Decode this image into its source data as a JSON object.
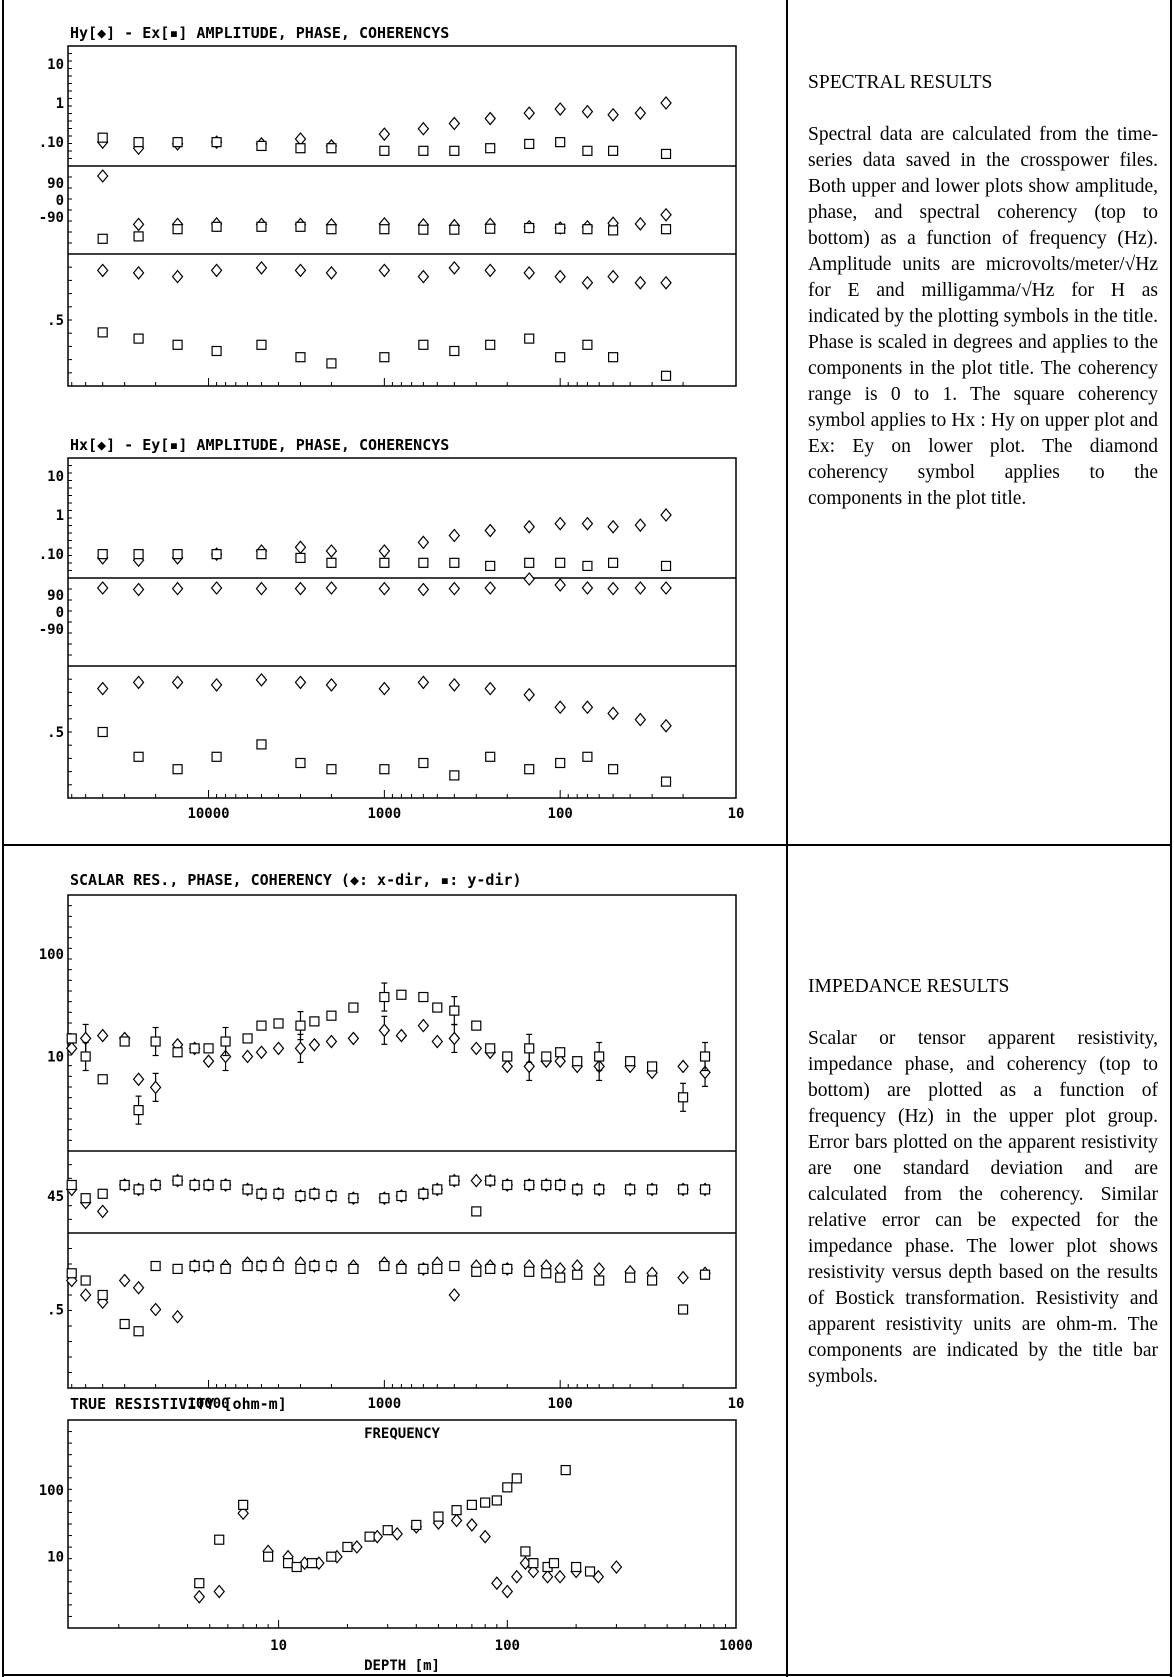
{
  "header_fragment": "(",
  "header_fragment_right": ")",
  "spectral": {
    "heading": "SPECTRAL RESULTS",
    "body": "Spectral data are calculated from the time-series data saved in the crosspower files. Both upper and lower plots show amplitude, phase, and spectral coherency (top to bottom) as a function of frequency (Hz). Amplitude units are microvolts/meter/√Hz for E and milligamma/√Hz for H as indicated by the plotting symbols in the title. Phase is scaled in degrees and applies to the components in the plot title. The coherency range is 0 to 1. The square coherency symbol applies to Hx : Hy on upper plot and Ex: Ey on lower plot. The diamond coherency symbol applies to the components in the plot title."
  },
  "impedance": {
    "heading": "IMPEDANCE RESULTS",
    "body": "Scalar or tensor apparent resistivity, impedance phase, and coherency (top to bottom) are plotted as a function of frequency (Hz) in the upper plot group. Error bars plotted on the apparent resistivity are one standard deviation and are calculated from the coherency. Similar relative error can be expected for the impedance phase. The lower plot shows resistivity versus depth based on the results of Bostick transformation. Resistivity and apparent resistivity units are ohm-m. The components are indicated by the title bar symbols."
  },
  "chart_data": [
    {
      "type": "scatter",
      "title": "Hy[◆] - Ex[▪] AMPLITUDE, PHASE, COHERENCYS",
      "xlabel": "",
      "x_scale": "log (decreasing)",
      "x_ticks": [],
      "subpanels": [
        {
          "name": "amplitude",
          "yticks": [
            "10",
            "1",
            ".10"
          ],
          "y_scale": "log"
        },
        {
          "name": "phase",
          "yticks": [
            "90",
            "0",
            "-90"
          ]
        },
        {
          "name": "coherency",
          "yticks": [
            ".5"
          ]
        }
      ],
      "series": [
        {
          "symbol": "diamond",
          "frequency": [
            40000,
            25000,
            15000,
            9000,
            5000,
            3000,
            2000,
            1000,
            600,
            400,
            250,
            150,
            100,
            70,
            50,
            35,
            25
          ],
          "amplitude": [
            0.1,
            0.07,
            0.09,
            0.1,
            0.09,
            0.12,
            0.08,
            0.16,
            0.22,
            0.3,
            0.4,
            0.55,
            0.7,
            0.6,
            0.5,
            0.55,
            1.0
          ],
          "phase": [
            90,
            -90,
            -90,
            -88,
            -90,
            -90,
            -92,
            -88,
            -92,
            -95,
            -90,
            -100,
            -105,
            -100,
            -85,
            -88,
            -50
          ],
          "coherency": [
            0.9,
            0.88,
            0.85,
            0.9,
            0.92,
            0.9,
            0.88,
            0.9,
            0.85,
            0.92,
            0.9,
            0.88,
            0.85,
            0.8,
            0.85,
            0.8,
            0.8
          ]
        },
        {
          "symbol": "square",
          "frequency": [
            40000,
            25000,
            15000,
            9000,
            5000,
            3000,
            2000,
            1000,
            600,
            400,
            250,
            150,
            100,
            70,
            50,
            25
          ],
          "amplitude": [
            0.13,
            0.1,
            0.1,
            0.1,
            0.08,
            0.07,
            0.07,
            0.06,
            0.06,
            0.06,
            0.07,
            0.09,
            0.1,
            0.06,
            0.06,
            0.05
          ],
          "phase": [
            -150,
            -140,
            -110,
            -100,
            -100,
            -100,
            -110,
            -110,
            -112,
            -112,
            -108,
            -105,
            -108,
            -110,
            -115,
            -110
          ],
          "coherency": [
            0.4,
            0.35,
            0.3,
            0.25,
            0.3,
            0.2,
            0.15,
            0.2,
            0.3,
            0.25,
            0.3,
            0.35,
            0.2,
            0.3,
            0.2,
            0.05
          ]
        }
      ]
    },
    {
      "type": "scatter",
      "title": "Hx[◆] - Ey[▪] AMPLITUDE, PHASE, COHERENCYS",
      "xlabel": "",
      "x_scale": "log (decreasing)",
      "x_ticks": [
        "10000",
        "1000",
        "100",
        "10"
      ],
      "subpanels": [
        {
          "name": "amplitude",
          "yticks": [
            "10",
            "1",
            ".10"
          ],
          "y_scale": "log"
        },
        {
          "name": "phase",
          "yticks": [
            "90",
            "0",
            "-90"
          ]
        },
        {
          "name": "coherency",
          "yticks": [
            ".5"
          ]
        }
      ],
      "series": [
        {
          "symbol": "diamond",
          "frequency": [
            40000,
            25000,
            15000,
            9000,
            5000,
            3000,
            2000,
            1000,
            600,
            400,
            250,
            150,
            100,
            70,
            50,
            35,
            25
          ],
          "amplitude": [
            0.08,
            0.07,
            0.08,
            0.1,
            0.12,
            0.15,
            0.12,
            0.12,
            0.2,
            0.3,
            0.4,
            0.5,
            0.6,
            0.6,
            0.5,
            0.55,
            1.0
          ],
          "phase": [
            90,
            85,
            88,
            90,
            88,
            88,
            90,
            88,
            85,
            88,
            90,
            120,
            100,
            90,
            88,
            90,
            90
          ],
          "coherency": [
            0.85,
            0.9,
            0.9,
            0.88,
            0.92,
            0.9,
            0.88,
            0.85,
            0.9,
            0.88,
            0.85,
            0.8,
            0.7,
            0.7,
            0.65,
            0.6,
            0.55
          ]
        },
        {
          "symbol": "square",
          "frequency": [
            40000,
            25000,
            15000,
            9000,
            5000,
            3000,
            2000,
            1000,
            600,
            400,
            250,
            150,
            100,
            70,
            50,
            25
          ],
          "amplitude": [
            0.1,
            0.1,
            0.1,
            0.1,
            0.1,
            0.08,
            0.06,
            0.06,
            0.06,
            0.06,
            0.05,
            0.06,
            0.06,
            0.05,
            0.06,
            0.05
          ],
          "coherency": [
            0.5,
            0.3,
            0.2,
            0.3,
            0.4,
            0.25,
            0.2,
            0.2,
            0.25,
            0.15,
            0.3,
            0.2,
            0.25,
            0.3,
            0.2,
            0.1
          ]
        }
      ]
    },
    {
      "type": "scatter",
      "title": "SCALAR RES., PHASE, COHERENCY (◆: x-dir, ▪: y-dir)",
      "xlabel": "FREQUENCY",
      "x_scale": "log (decreasing)",
      "x_ticks": [
        "10000",
        "1000",
        "100",
        "10"
      ],
      "subpanels": [
        {
          "name": "apparent resistivity",
          "yticks": [
            "100",
            "10"
          ],
          "y_scale": "log"
        },
        {
          "name": "phase",
          "yticks": [
            "45"
          ]
        },
        {
          "name": "coherency",
          "yticks": [
            ".5"
          ]
        }
      ],
      "series": [
        {
          "symbol": "diamond",
          "frequency": [
            60000,
            50000,
            40000,
            30000,
            25000,
            20000,
            15000,
            12000,
            10000,
            8000,
            6000,
            5000,
            4000,
            3000,
            2500,
            2000,
            1500,
            1000,
            800,
            600,
            500,
            400,
            300,
            250,
            200,
            150,
            120,
            100,
            80,
            60,
            40,
            30,
            20,
            15
          ],
          "resistivity": [
            12,
            15,
            16,
            15,
            6,
            5,
            13,
            12,
            9,
            10,
            10,
            11,
            12,
            12,
            13,
            14,
            15,
            18,
            16,
            20,
            14,
            15,
            12,
            11,
            8,
            8,
            9,
            9,
            8,
            8,
            8,
            7,
            8,
            7
          ],
          "phase": [
            48,
            42,
            38,
            50,
            48,
            50,
            52,
            50,
            50,
            50,
            48,
            46,
            46,
            45,
            46,
            45,
            44,
            44,
            45,
            46,
            48,
            52,
            52,
            52,
            50,
            50,
            50,
            50,
            48,
            48,
            48,
            48,
            48,
            48
          ],
          "coherency": [
            0.7,
            0.6,
            0.55,
            0.7,
            0.65,
            0.5,
            0.45,
            0.8,
            0.8,
            0.8,
            0.82,
            0.8,
            0.82,
            0.82,
            0.8,
            0.8,
            0.8,
            0.82,
            0.8,
            0.78,
            0.82,
            0.6,
            0.8,
            0.8,
            0.78,
            0.8,
            0.8,
            0.78,
            0.8,
            0.78,
            0.76,
            0.75,
            0.72,
            0.75
          ]
        },
        {
          "symbol": "square",
          "frequency": [
            60000,
            50000,
            40000,
            30000,
            25000,
            20000,
            15000,
            12000,
            10000,
            8000,
            6000,
            5000,
            4000,
            3000,
            2500,
            2000,
            1500,
            1000,
            800,
            600,
            500,
            400,
            300,
            250,
            200,
            150,
            120,
            100,
            80,
            60,
            40,
            30,
            20,
            15
          ],
          "resistivity": [
            15,
            10,
            6,
            14,
            3,
            14,
            11,
            12,
            12,
            14,
            15,
            20,
            21,
            20,
            22,
            25,
            30,
            38,
            40,
            38,
            30,
            28,
            20,
            12,
            10,
            12,
            10,
            11,
            9,
            10,
            9,
            8,
            4,
            10
          ],
          "phase": [
            50,
            44,
            46,
            50,
            48,
            50,
            52,
            50,
            50,
            50,
            48,
            46,
            46,
            45,
            46,
            45,
            44,
            44,
            45,
            46,
            48,
            52,
            38,
            52,
            50,
            50,
            50,
            50,
            48,
            48,
            48,
            48,
            48,
            48
          ],
          "coherency": [
            0.75,
            0.7,
            0.6,
            0.4,
            0.35,
            0.8,
            0.78,
            0.8,
            0.8,
            0.78,
            0.8,
            0.8,
            0.8,
            0.78,
            0.8,
            0.8,
            0.78,
            0.8,
            0.78,
            0.78,
            0.78,
            0.8,
            0.76,
            0.78,
            0.78,
            0.76,
            0.75,
            0.72,
            0.74,
            0.7,
            0.72,
            0.7,
            0.5,
            0.74
          ]
        }
      ]
    },
    {
      "type": "scatter",
      "title": "TRUE RESISTIVITY [ohm-m]",
      "xlabel": "DEPTH [m]",
      "x_scale": "log",
      "x_ticks": [
        "10",
        "100",
        "1000"
      ],
      "yticks": [
        "100",
        "10"
      ],
      "y_scale": "log",
      "series": [
        {
          "symbol": "diamond",
          "depth": [
            4.5,
            5.5,
            7,
            9,
            11,
            13,
            15,
            18,
            22,
            27,
            33,
            40,
            50,
            60,
            70,
            80,
            90,
            100,
            110,
            120,
            130,
            150,
            170,
            200,
            250,
            300
          ],
          "resistivity": [
            2.5,
            3,
            45,
            12,
            10,
            8,
            8,
            10,
            14,
            20,
            22,
            28,
            32,
            35,
            30,
            20,
            4,
            3,
            5,
            8,
            6,
            5,
            5,
            6,
            5,
            7
          ]
        },
        {
          "symbol": "square",
          "depth": [
            4.5,
            5.5,
            7,
            9,
            11,
            12,
            14,
            17,
            20,
            25,
            30,
            40,
            50,
            60,
            70,
            80,
            90,
            100,
            110,
            120,
            130,
            150,
            160,
            180,
            200,
            230
          ],
          "resistivity": [
            4,
            18,
            60,
            10,
            8,
            7,
            8,
            10,
            14,
            20,
            25,
            30,
            40,
            50,
            60,
            65,
            70,
            110,
            150,
            12,
            8,
            7,
            8,
            200,
            7,
            6
          ]
        }
      ]
    }
  ]
}
